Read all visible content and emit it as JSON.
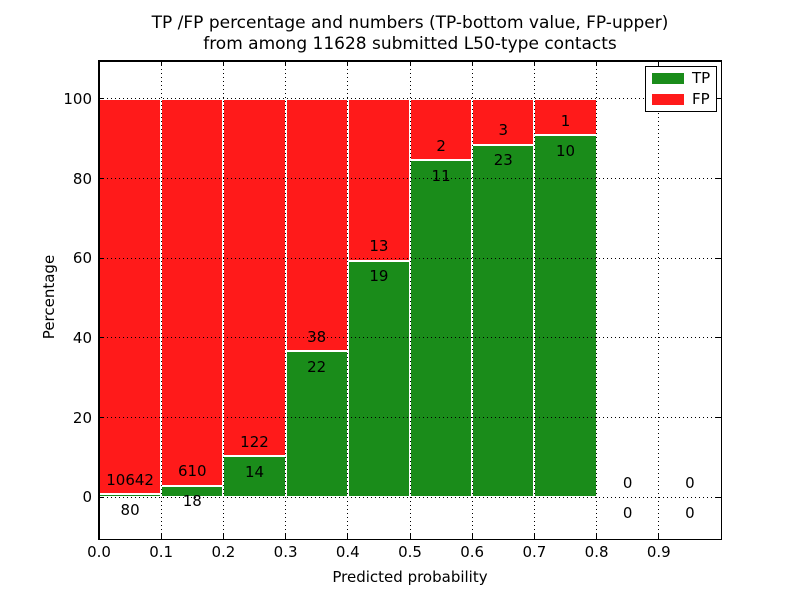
{
  "chart_data": {
    "type": "bar",
    "stacked": true,
    "title": "TP /FP percentage and numbers (TP-bottom value, FP-upper)\nfrom among 11628 submitted L50-type contacts",
    "title_lines": [
      "TP /FP percentage and numbers (TP-bottom value, FP-upper)",
      "from among 11628 submitted L50-type contacts"
    ],
    "xlabel": "Predicted probability",
    "ylabel": "Percentage",
    "xlim": [
      0,
      1
    ],
    "ylim": [
      -10.5,
      109.5
    ],
    "xtick_labels": [
      "0.0",
      "0.1",
      "0.2",
      "0.3",
      "0.4",
      "0.5",
      "0.6",
      "0.7",
      "0.8",
      "0.9"
    ],
    "xtick_values": [
      0,
      0.1,
      0.2,
      0.3,
      0.4,
      0.5,
      0.6,
      0.7,
      0.8,
      0.9
    ],
    "ytick_values": [
      0,
      20,
      40,
      60,
      80,
      100
    ],
    "grid": true,
    "grid_linestyle": "dotted",
    "total_submitted_contacts": 11628,
    "legend": {
      "location": "upper right",
      "entries": [
        {
          "label": "TP",
          "color": "#1a8c1a"
        },
        {
          "label": "FP",
          "color": "#ff1a1a"
        }
      ]
    },
    "bins": [
      {
        "range": [
          0.0,
          0.1
        ],
        "tp": 80,
        "fp": 10642,
        "tp_pct": 0.75,
        "fp_pct": 99.25
      },
      {
        "range": [
          0.1,
          0.2
        ],
        "tp": 18,
        "fp": 610,
        "tp_pct": 2.87,
        "fp_pct": 97.13
      },
      {
        "range": [
          0.2,
          0.3
        ],
        "tp": 14,
        "fp": 122,
        "tp_pct": 10.29,
        "fp_pct": 89.71
      },
      {
        "range": [
          0.3,
          0.4
        ],
        "tp": 22,
        "fp": 38,
        "tp_pct": 36.67,
        "fp_pct": 63.33
      },
      {
        "range": [
          0.4,
          0.5
        ],
        "tp": 19,
        "fp": 13,
        "tp_pct": 59.38,
        "fp_pct": 40.62
      },
      {
        "range": [
          0.5,
          0.6
        ],
        "tp": 11,
        "fp": 2,
        "tp_pct": 84.62,
        "fp_pct": 15.38
      },
      {
        "range": [
          0.6,
          0.7
        ],
        "tp": 23,
        "fp": 3,
        "tp_pct": 88.46,
        "fp_pct": 11.54
      },
      {
        "range": [
          0.7,
          0.8
        ],
        "tp": 10,
        "fp": 1,
        "tp_pct": 90.91,
        "fp_pct": 9.09
      },
      {
        "range": [
          0.8,
          0.9
        ],
        "tp": 0,
        "fp": 0,
        "tp_pct": 0,
        "fp_pct": 0
      },
      {
        "range": [
          0.9,
          1.0
        ],
        "tp": 0,
        "fp": 0,
        "tp_pct": 0,
        "fp_pct": 0
      }
    ],
    "colors": {
      "tp": "#1a8c1a",
      "fp": "#ff1a1a",
      "bar_edge": "#ffffff",
      "grid": "#000000",
      "spine": "#000000",
      "text": "#000000",
      "background": "#ffffff"
    }
  }
}
